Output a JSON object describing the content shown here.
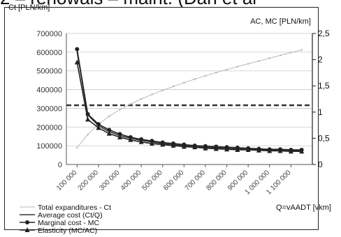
{
  "header": {
    "partial_title": "2 – renowals – maint. (Dan et al"
  },
  "chart_data": {
    "type": "line",
    "y_left_label": "Ct  [PLN/km]",
    "y_right_label": "AC, MC [PLN/km]",
    "x_label": "Q=vAADT [vkm]",
    "x_tick_labels": [
      "100 000",
      "200 000",
      "300 000",
      "400 000",
      "500 000",
      "600 000",
      "700 000",
      "800 000",
      "900 000",
      "1 000 000",
      "1 100 000"
    ],
    "x_ticks": [
      100000,
      200000,
      300000,
      400000,
      500000,
      600000,
      700000,
      800000,
      900000,
      1000000,
      1100000
    ],
    "xlim": [
      50000,
      1200000
    ],
    "y_left_ticks": [
      "0",
      "100000",
      "200000",
      "300000",
      "400000",
      "500000",
      "600000",
      "700000"
    ],
    "y_left_lim": [
      0,
      700000
    ],
    "y_right_ticks": [
      "0",
      "0,5",
      "1",
      "1,5",
      "2",
      "2,5"
    ],
    "y_right_lim": [
      0,
      2.5
    ],
    "grid": true,
    "legend_position": "bottom-left",
    "x": [
      100000,
      150000,
      200000,
      250000,
      300000,
      350000,
      400000,
      450000,
      500000,
      550000,
      600000,
      650000,
      700000,
      750000,
      800000,
      850000,
      900000,
      950000,
      1000000,
      1050000,
      1100000,
      1150000
    ],
    "series": [
      {
        "name": "Total expanditures - Ct",
        "axis": "left",
        "marker": "none",
        "color": "#bbbbbb",
        "values": [
          90000,
          160000,
          215000,
          258000,
          293000,
          323000,
          350000,
          374000,
          396000,
          417000,
          437000,
          456000,
          474000,
          491000,
          507000,
          523000,
          538000,
          553000,
          568000,
          583000,
          598000,
          612000
        ]
      },
      {
        "name": "Average cost (Ct/Q)",
        "axis": "right",
        "marker": "none",
        "color": "#333333",
        "values": [
          2.15,
          0.95,
          0.74,
          0.63,
          0.55,
          0.5,
          0.46,
          0.43,
          0.4,
          0.38,
          0.36,
          0.34,
          0.33,
          0.32,
          0.31,
          0.3,
          0.29,
          0.28,
          0.28,
          0.27,
          0.27,
          0.26
        ]
      },
      {
        "name": "Marginal cost - MC",
        "axis": "right",
        "marker": "circle",
        "color": "#222222",
        "values": [
          2.2,
          0.96,
          0.77,
          0.66,
          0.58,
          0.52,
          0.48,
          0.45,
          0.42,
          0.4,
          0.38,
          0.36,
          0.35,
          0.34,
          0.33,
          0.32,
          0.31,
          0.3,
          0.29,
          0.29,
          0.28,
          0.28
        ]
      },
      {
        "name": "Elasticity (MC/AC)",
        "axis": "right",
        "marker": "triangle",
        "color": "#222222",
        "values": [
          1.95,
          0.86,
          0.7,
          0.59,
          0.52,
          0.47,
          0.43,
          0.4,
          0.38,
          0.36,
          0.34,
          0.33,
          0.31,
          0.3,
          0.29,
          0.28,
          0.28,
          0.27,
          0.26,
          0.26,
          0.25,
          0.25
        ]
      }
    ],
    "reference_line": {
      "axis": "right",
      "value": 1.13,
      "style": "dashed",
      "color": "#333333"
    }
  }
}
